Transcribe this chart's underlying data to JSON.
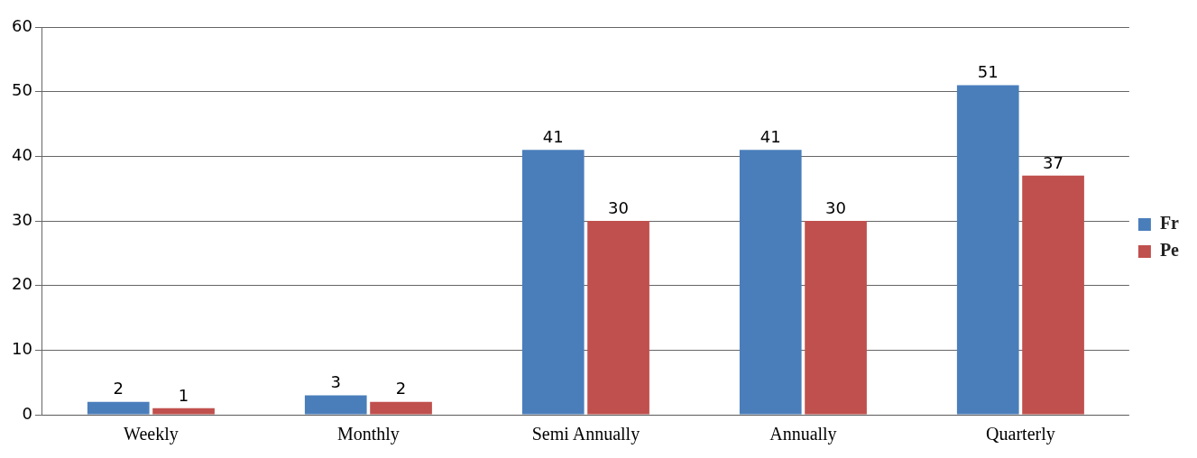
{
  "chart_data": {
    "type": "bar",
    "categories": [
      "Weekly",
      "Monthly",
      "Semi Annually",
      "Annually",
      "Quarterly"
    ],
    "series": [
      {
        "name": "Fr",
        "color": "#4a7ebb",
        "values": [
          2,
          3,
          41,
          41,
          51
        ]
      },
      {
        "name": "Pe",
        "color": "#c0504d",
        "values": [
          1,
          2,
          30,
          30,
          37
        ]
      }
    ],
    "ylim": [
      0,
      60
    ],
    "yticks": [
      0,
      10,
      20,
      30,
      40,
      50,
      60
    ],
    "grid": "y",
    "legend": "right",
    "data_labels": true
  }
}
